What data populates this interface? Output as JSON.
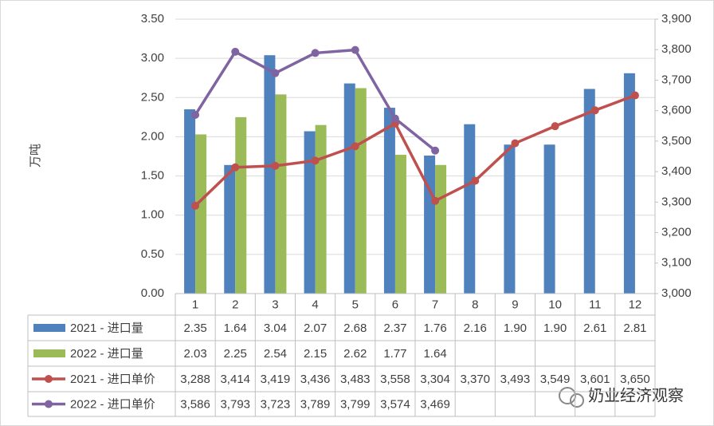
{
  "chart_data": {
    "type": "bar",
    "y_label": "万吨",
    "categories": [
      "1",
      "2",
      "3",
      "4",
      "5",
      "6",
      "7",
      "8",
      "9",
      "10",
      "11",
      "12"
    ],
    "series": [
      {
        "name": "2021 - 进口量",
        "type": "bar",
        "color": "#4f81bd",
        "values": [
          2.35,
          1.64,
          3.04,
          2.07,
          2.68,
          2.37,
          1.76,
          2.16,
          1.9,
          1.9,
          2.61,
          2.81
        ],
        "value_labels": [
          "2.35",
          "1.64",
          "3.04",
          "2.07",
          "2.68",
          "2.37",
          "1.76",
          "2.16",
          "1.90",
          "1.90",
          "2.61",
          "2.81"
        ]
      },
      {
        "name": "2022 - 进口量",
        "type": "bar",
        "color": "#9bbb59",
        "values": [
          2.03,
          2.25,
          2.54,
          2.15,
          2.62,
          1.77,
          1.64,
          null,
          null,
          null,
          null,
          null
        ],
        "value_labels": [
          "2.03",
          "2.25",
          "2.54",
          "2.15",
          "2.62",
          "1.77",
          "1.64",
          null,
          null,
          null,
          null,
          null
        ]
      },
      {
        "name": "2021 - 进口单价",
        "type": "line",
        "axis": "y2",
        "color": "#c0504d",
        "values": [
          3288,
          3414,
          3419,
          3436,
          3483,
          3558,
          3304,
          3370,
          3493,
          3549,
          3601,
          3650
        ],
        "value_labels": [
          "3,288",
          "3,414",
          "3,419",
          "3,436",
          "3,483",
          "3,558",
          "3,304",
          "3,370",
          "3,493",
          "3,549",
          "3,601",
          "3,650"
        ]
      },
      {
        "name": "2022 - 进口单价",
        "type": "line",
        "axis": "y2",
        "color": "#8064a2",
        "values": [
          3586,
          3793,
          3723,
          3789,
          3799,
          3574,
          3469,
          null,
          null,
          null,
          null,
          null
        ],
        "value_labels": [
          "3,586",
          "3,793",
          "3,723",
          "3,789",
          "3,799",
          "3,574",
          "3,469",
          null,
          null,
          null,
          null,
          null
        ]
      }
    ],
    "ylim": [
      0,
      3.5
    ],
    "yticks": [
      {
        "value": 0,
        "label": "0.00"
      },
      {
        "value": 0.5,
        "label": "0.50"
      },
      {
        "value": 1,
        "label": "1.00"
      },
      {
        "value": 1.5,
        "label": "1.50"
      },
      {
        "value": 2,
        "label": "2.00"
      },
      {
        "value": 2.5,
        "label": "2.50"
      },
      {
        "value": 3,
        "label": "3.00"
      },
      {
        "value": 3.5,
        "label": "3.50"
      }
    ],
    "y2lim": [
      3000,
      3900
    ],
    "y2ticks": [
      {
        "value": 3000,
        "label": "3,000"
      },
      {
        "value": 3100,
        "label": "3,100"
      },
      {
        "value": 3200,
        "label": "3,200"
      },
      {
        "value": 3300,
        "label": "3,300"
      },
      {
        "value": 3400,
        "label": "3,400"
      },
      {
        "value": 3500,
        "label": "3,500"
      },
      {
        "value": 3600,
        "label": "3,600"
      },
      {
        "value": 3700,
        "label": "3,700"
      },
      {
        "value": 3800,
        "label": "3,800"
      },
      {
        "value": 3900,
        "label": "3,900"
      }
    ],
    "grid": true,
    "watermark": "奶业经济观察"
  }
}
